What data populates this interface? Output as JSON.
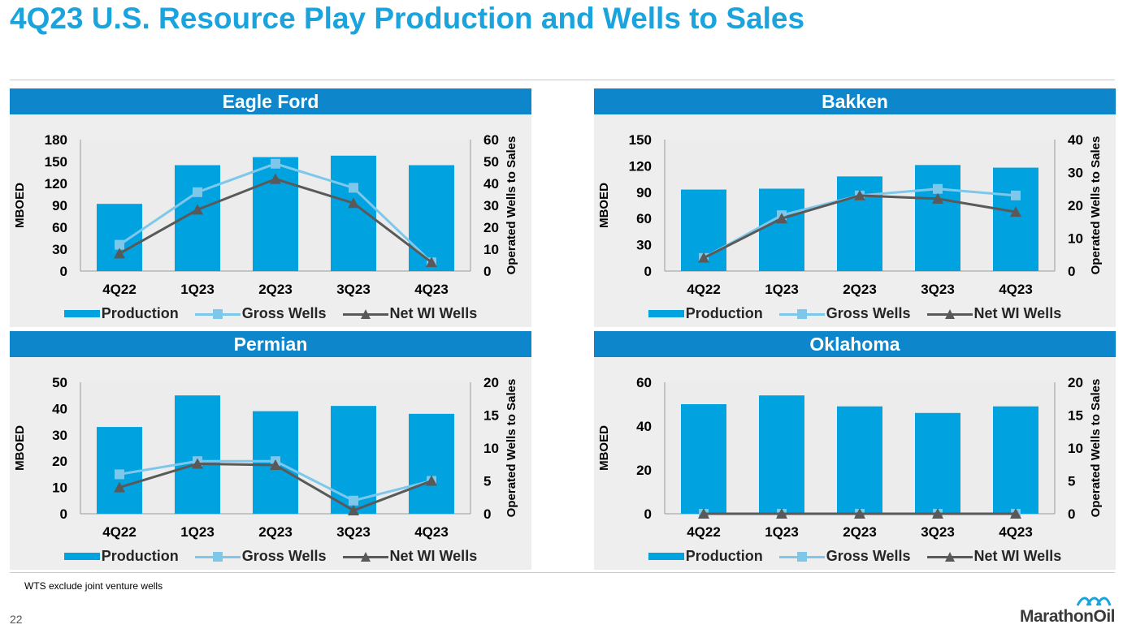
{
  "slide": {
    "title": "4Q23 U.S. Resource Play Production and Wells to Sales",
    "footnote": "WTS exclude joint venture wells",
    "page_number": "22",
    "logo_text": "MarathonOil"
  },
  "colors": {
    "header": "#0e86cc",
    "bar": "#00a3e0",
    "gross": "#7dc8ea",
    "net": "#595959",
    "title": "#1aa3dc"
  },
  "legend": {
    "production": "Production",
    "gross": "Gross Wells",
    "net": "Net WI Wells"
  },
  "chart_data": [
    {
      "type": "bar",
      "title": "Eagle Ford",
      "categories": [
        "4Q22",
        "1Q23",
        "2Q23",
        "3Q23",
        "4Q23"
      ],
      "ylabel": "MBOED",
      "y2label": "Operated Wells to Sales",
      "ylim": [
        0,
        180
      ],
      "yticks": [
        0,
        30,
        60,
        90,
        120,
        150,
        180
      ],
      "y2lim": [
        0,
        60
      ],
      "y2ticks": [
        0,
        10,
        20,
        30,
        40,
        50,
        60
      ],
      "series": [
        {
          "name": "Production",
          "kind": "bar",
          "axis": "left",
          "values": [
            92,
            145,
            156,
            158,
            145
          ]
        },
        {
          "name": "Gross Wells",
          "kind": "line",
          "axis": "right",
          "values": [
            12,
            36,
            49,
            38,
            4
          ]
        },
        {
          "name": "Net WI Wells",
          "kind": "line",
          "axis": "right",
          "values": [
            8,
            28,
            42,
            31,
            4
          ]
        }
      ]
    },
    {
      "type": "bar",
      "title": "Bakken",
      "categories": [
        "4Q22",
        "1Q23",
        "2Q23",
        "3Q23",
        "4Q23"
      ],
      "ylabel": "MBOED",
      "y2label": "Operated Wells to Sales",
      "ylim": [
        0,
        150
      ],
      "yticks": [
        0,
        30,
        60,
        90,
        120,
        150
      ],
      "y2lim": [
        0,
        40
      ],
      "y2ticks": [
        0,
        10,
        20,
        30,
        40
      ],
      "series": [
        {
          "name": "Production",
          "kind": "bar",
          "axis": "left",
          "values": [
            93,
            94,
            108,
            121,
            118
          ]
        },
        {
          "name": "Gross Wells",
          "kind": "line",
          "axis": "right",
          "values": [
            4,
            17,
            23,
            25,
            23
          ]
        },
        {
          "name": "Net WI Wells",
          "kind": "line",
          "axis": "right",
          "values": [
            4,
            16,
            23,
            22,
            18
          ]
        }
      ]
    },
    {
      "type": "bar",
      "title": "Permian",
      "categories": [
        "4Q22",
        "1Q23",
        "2Q23",
        "3Q23",
        "4Q23"
      ],
      "ylabel": "MBOED",
      "y2label": "Operated Wells to Sales",
      "ylim": [
        0,
        50
      ],
      "yticks": [
        0,
        10,
        20,
        30,
        40,
        50
      ],
      "y2lim": [
        0,
        20
      ],
      "y2ticks": [
        0,
        5,
        10,
        15,
        20
      ],
      "series": [
        {
          "name": "Production",
          "kind": "bar",
          "axis": "left",
          "values": [
            33,
            45,
            39,
            41,
            38
          ]
        },
        {
          "name": "Gross Wells",
          "kind": "line",
          "axis": "right",
          "values": [
            6,
            8,
            8,
            2,
            5
          ]
        },
        {
          "name": "Net WI Wells",
          "kind": "line",
          "axis": "right",
          "values": [
            4,
            7.6,
            7.4,
            0.5,
            5
          ]
        }
      ]
    },
    {
      "type": "bar",
      "title": "Oklahoma",
      "categories": [
        "4Q22",
        "1Q23",
        "2Q23",
        "3Q23",
        "4Q23"
      ],
      "ylabel": "MBOED",
      "y2label": "Operated Wells to Sales",
      "ylim": [
        0,
        60
      ],
      "yticks": [
        0,
        20,
        40,
        60
      ],
      "y2lim": [
        0,
        20
      ],
      "y2ticks": [
        0,
        5,
        10,
        15,
        20
      ],
      "series": [
        {
          "name": "Production",
          "kind": "bar",
          "axis": "left",
          "values": [
            50,
            54,
            49,
            46,
            49
          ]
        },
        {
          "name": "Gross Wells",
          "kind": "line",
          "axis": "right",
          "values": [
            0,
            0,
            0,
            0,
            0
          ]
        },
        {
          "name": "Net WI Wells",
          "kind": "line",
          "axis": "right",
          "values": [
            0,
            0,
            0,
            0,
            0
          ]
        }
      ]
    }
  ]
}
